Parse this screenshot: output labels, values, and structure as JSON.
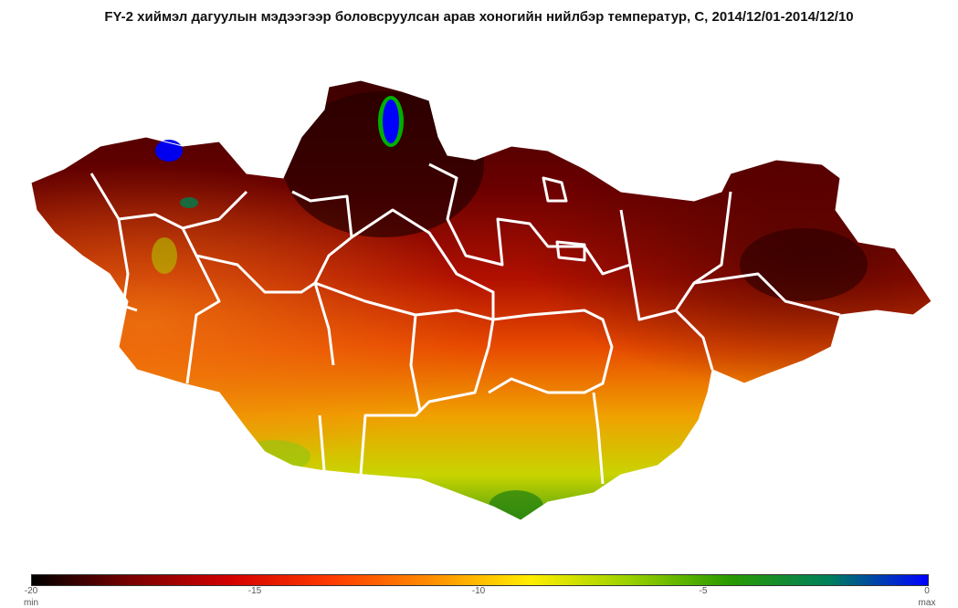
{
  "title": "FY-2 хиймэл дагуулын мэдээгээр боловсруулсан арав хоногийн нийлбэр температур, С, 2014/12/01-2014/12/10",
  "colorbar": {
    "colors": [
      "#000000",
      "#7a0000",
      "#d40000",
      "#ff3a00",
      "#ff8c00",
      "#ffee00",
      "#9ad000",
      "#2a9a00",
      "#00805a",
      "#0000ff"
    ],
    "ticks": [
      "-20",
      "-15",
      "-10",
      "-5",
      "0"
    ],
    "min_label": "min",
    "max_label": "max"
  }
}
